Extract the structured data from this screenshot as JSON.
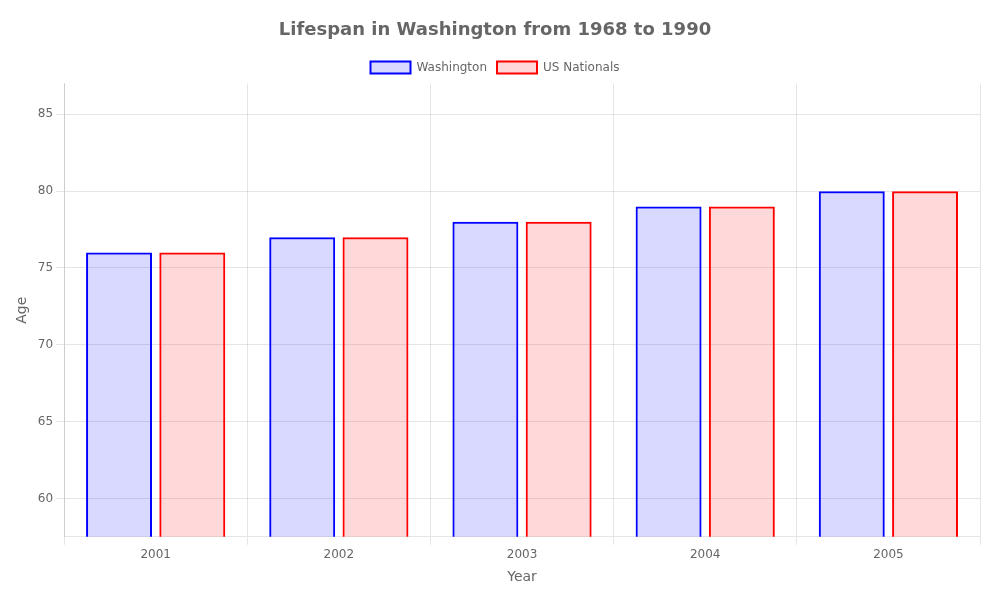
{
  "chart_data": {
    "type": "bar",
    "title": "Lifespan in Washington from 1968 to 1990",
    "xlabel": "Year",
    "ylabel": "Age",
    "categories": [
      "2001",
      "2002",
      "2003",
      "2004",
      "2005"
    ],
    "series": [
      {
        "name": "Washington",
        "color": "#0000ff",
        "values": [
          76,
          77,
          78,
          79,
          80
        ]
      },
      {
        "name": "US Nationals",
        "color": "#ff0000",
        "values": [
          76,
          77,
          78,
          79,
          80
        ]
      }
    ],
    "ylim": [
      57.5,
      87
    ],
    "yticks": [
      60,
      65,
      70,
      75,
      80,
      85
    ],
    "grid": true,
    "legend": "top"
  }
}
